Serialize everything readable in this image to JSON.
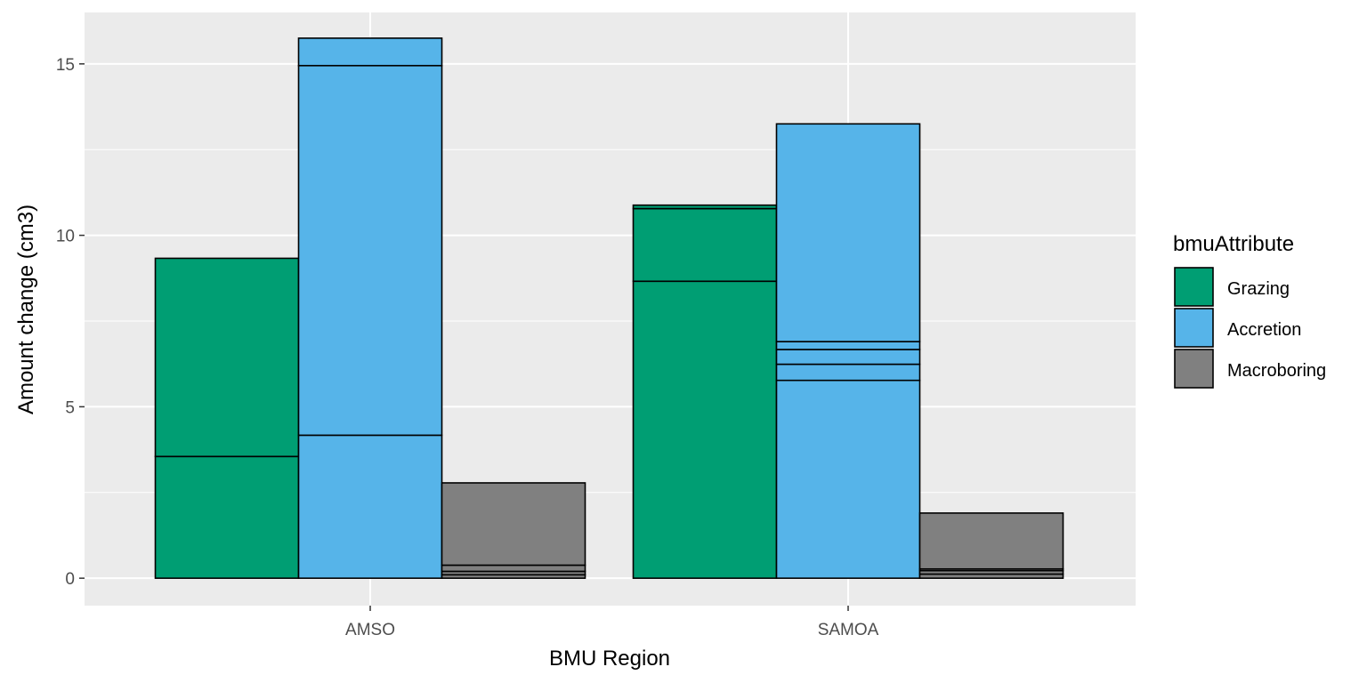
{
  "chart_data": {
    "type": "bar",
    "stacked": true,
    "title": "",
    "xlabel": "BMU Region",
    "ylabel": "Amount change (cm3)",
    "ylim": [
      -0.8,
      16.5
    ],
    "yticks": [
      "0",
      "5",
      "10",
      "15"
    ],
    "ytick_values": [
      0,
      5,
      10,
      15
    ],
    "categories": [
      "AMSO",
      "SAMOA"
    ],
    "grid": true,
    "legend": {
      "title": "bmuAttribute",
      "position": "right",
      "entries": [
        {
          "label": "Grazing",
          "color": "#009E73"
        },
        {
          "label": "Accretion",
          "color": "#56B4E9"
        },
        {
          "label": "Macroboring",
          "color": "#808080"
        }
      ]
    },
    "bars": [
      {
        "category": "AMSO",
        "attribute": "Grazing",
        "color": "#009E73",
        "segments": [
          3.55,
          5.78
        ]
      },
      {
        "category": "AMSO",
        "attribute": "Accretion",
        "color": "#56B4E9",
        "segments": [
          4.17,
          10.78,
          0.8
        ]
      },
      {
        "category": "AMSO",
        "attribute": "Macroboring",
        "color": "#808080",
        "segments": [
          0.1,
          0.1,
          0.18,
          2.4
        ]
      },
      {
        "category": "SAMOA",
        "attribute": "Grazing",
        "color": "#009E73",
        "segments": [
          8.66,
          2.12,
          0.1
        ]
      },
      {
        "category": "SAMOA",
        "attribute": "Accretion",
        "color": "#56B4E9",
        "segments": [
          5.77,
          0.47,
          0.43,
          0.23,
          6.35
        ]
      },
      {
        "category": "SAMOA",
        "attribute": "Macroboring",
        "color": "#808080",
        "segments": [
          0.12,
          0.1,
          0.05,
          1.63
        ]
      }
    ]
  }
}
